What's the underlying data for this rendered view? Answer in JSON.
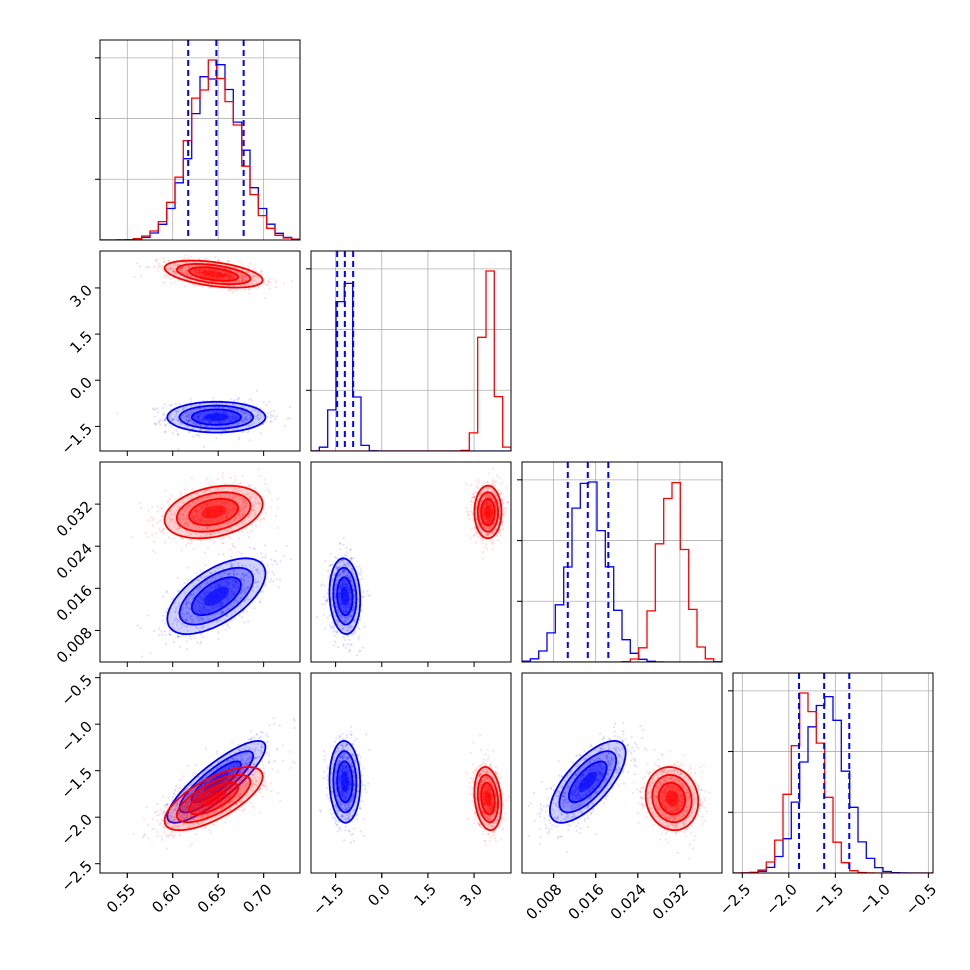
{
  "chart_data": {
    "type": "corner",
    "grid": true,
    "colors": {
      "series_a": "#0000ff",
      "series_b": "#ff0000",
      "quantile_lines": "#0000ff",
      "grid": "#b0b0b0"
    },
    "parameters": [
      {
        "range": [
          0.52,
          0.74
        ],
        "ticks": [
          0.55,
          0.6,
          0.65,
          0.7
        ],
        "tick_labels": [
          "0.55",
          "0.60",
          "0.65",
          "0.70"
        ]
      },
      {
        "range": [
          -2.3,
          4.2
        ],
        "ticks": [
          -1.5,
          0.0,
          1.5,
          3.0
        ],
        "tick_labels": [
          "−1.5",
          "0.0",
          "1.5",
          "3.0"
        ]
      },
      {
        "range": [
          0.002,
          0.04
        ],
        "ticks": [
          0.008,
          0.016,
          0.024,
          0.032
        ],
        "tick_labels": [
          "0.008",
          "0.016",
          "0.024",
          "0.032"
        ]
      },
      {
        "range": [
          -2.6,
          -0.45
        ],
        "ticks": [
          -2.5,
          -2.0,
          -1.5,
          -1.0,
          -0.5
        ],
        "tick_labels": [
          "−2.5",
          "−2.0",
          "−1.5",
          "−1.0",
          "−0.5"
        ]
      }
    ],
    "series": [
      {
        "color": "#0000ff",
        "means": [
          0.648,
          -1.2,
          0.0145,
          -1.62
        ],
        "sds": [
          0.027,
          0.25,
          0.0036,
          0.22
        ],
        "correlations": {
          "0-1": 0.0,
          "0-2": 0.6,
          "0-3": 0.85,
          "1-2": -0.1,
          "1-3": -0.05,
          "2-3": 0.7
        },
        "quantiles": [
          [
            0.617,
            0.648,
            0.678
          ],
          [
            -1.45,
            -1.2,
            -0.93
          ],
          [
            0.0107,
            0.0145,
            0.0184
          ],
          [
            -1.89,
            -1.62,
            -1.35
          ]
        ]
      },
      {
        "color": "#ff0000",
        "means": [
          0.645,
          3.45,
          0.0305,
          -1.8
        ],
        "sds": [
          0.027,
          0.22,
          0.0025,
          0.17
        ],
        "correlations": {
          "0-1": -0.45,
          "0-2": 0.3,
          "0-3": 0.7,
          "1-2": 0.0,
          "1-3": -0.2,
          "2-3": -0.1
        },
        "quantiles": null
      }
    ],
    "contour_levels_sigma": [
      0.5,
      1.0,
      1.5,
      2.0
    ]
  }
}
